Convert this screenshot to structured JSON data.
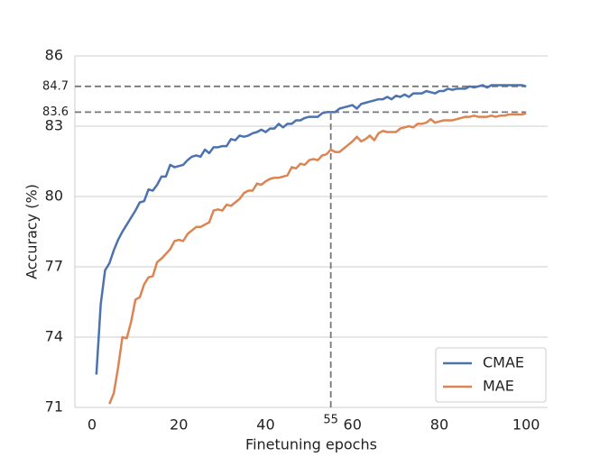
{
  "chart_data": {
    "type": "line",
    "xlabel": "Finetuning epochs",
    "ylabel": "Accuracy (%)",
    "xlim": [
      -3.95,
      104.95
    ],
    "ylim": [
      71,
      86
    ],
    "xticks": [
      0,
      20,
      40,
      60,
      80,
      100
    ],
    "yticks": [
      71,
      74,
      77,
      80,
      83,
      86
    ],
    "grid": true,
    "legend": "lower right",
    "reference_yticks": [
      84.7,
      83.6
    ],
    "reference_xtick": 55,
    "series": [
      {
        "name": "CMAE",
        "color": "#4c72b0",
        "x": [
          1,
          2,
          3,
          4,
          5,
          6,
          7,
          8,
          9,
          10,
          11,
          12,
          13,
          14,
          15,
          16,
          17,
          18,
          19,
          20,
          21,
          22,
          23,
          24,
          25,
          26,
          27,
          28,
          29,
          30,
          31,
          32,
          33,
          34,
          35,
          36,
          37,
          38,
          39,
          40,
          41,
          42,
          43,
          44,
          45,
          46,
          47,
          48,
          49,
          50,
          51,
          52,
          53,
          54,
          55,
          56,
          57,
          58,
          59,
          60,
          61,
          62,
          63,
          64,
          65,
          66,
          67,
          68,
          69,
          70,
          71,
          72,
          73,
          74,
          75,
          76,
          77,
          78,
          79,
          80,
          81,
          82,
          83,
          84,
          85,
          86,
          87,
          88,
          89,
          90,
          91,
          92,
          93,
          94,
          95,
          96,
          97,
          98,
          99,
          100
        ],
        "values": [
          72.4,
          75.4,
          76.85,
          77.15,
          77.7,
          78.15,
          78.5,
          78.8,
          79.1,
          79.4,
          79.75,
          79.8,
          80.3,
          80.25,
          80.5,
          80.85,
          80.85,
          81.35,
          81.25,
          81.3,
          81.35,
          81.55,
          81.7,
          81.75,
          81.7,
          82.0,
          81.85,
          82.1,
          82.1,
          82.15,
          82.15,
          82.45,
          82.4,
          82.6,
          82.55,
          82.6,
          82.7,
          82.75,
          82.85,
          82.75,
          82.9,
          82.9,
          83.1,
          82.95,
          83.1,
          83.1,
          83.25,
          83.25,
          83.35,
          83.4,
          83.4,
          83.4,
          83.55,
          83.6,
          83.6,
          83.6,
          83.75,
          83.8,
          83.85,
          83.9,
          83.75,
          83.95,
          84.0,
          84.05,
          84.1,
          84.15,
          84.15,
          84.25,
          84.15,
          84.3,
          84.25,
          84.35,
          84.25,
          84.4,
          84.4,
          84.4,
          84.5,
          84.45,
          84.4,
          84.5,
          84.5,
          84.6,
          84.55,
          84.6,
          84.6,
          84.6,
          84.7,
          84.65,
          84.7,
          84.75,
          84.65,
          84.75,
          84.75,
          84.75,
          84.75,
          84.75,
          84.75,
          84.75,
          84.75,
          84.7
        ]
      },
      {
        "name": "MAE",
        "color": "#dd8452",
        "x": [
          4,
          5,
          6,
          7,
          8,
          9,
          10,
          11,
          12,
          13,
          14,
          15,
          16,
          17,
          18,
          19,
          20,
          21,
          22,
          23,
          24,
          25,
          26,
          27,
          28,
          29,
          30,
          31,
          32,
          33,
          34,
          35,
          36,
          37,
          38,
          39,
          40,
          41,
          42,
          43,
          44,
          45,
          46,
          47,
          48,
          49,
          50,
          51,
          52,
          53,
          54,
          55,
          56,
          57,
          58,
          59,
          60,
          61,
          62,
          63,
          64,
          65,
          66,
          67,
          68,
          69,
          70,
          71,
          72,
          73,
          74,
          75,
          76,
          77,
          78,
          79,
          80,
          81,
          82,
          83,
          84,
          85,
          86,
          87,
          88,
          89,
          90,
          91,
          92,
          93,
          94,
          95,
          96,
          97,
          98,
          99,
          100
        ],
        "values": [
          71.15,
          71.6,
          72.7,
          74.0,
          73.95,
          74.65,
          75.6,
          75.7,
          76.25,
          76.55,
          76.6,
          77.2,
          77.35,
          77.55,
          77.75,
          78.1,
          78.15,
          78.1,
          78.4,
          78.55,
          78.7,
          78.7,
          78.8,
          78.9,
          79.4,
          79.45,
          79.4,
          79.65,
          79.6,
          79.75,
          79.9,
          80.15,
          80.25,
          80.25,
          80.55,
          80.5,
          80.65,
          80.75,
          80.8,
          80.8,
          80.85,
          80.9,
          81.25,
          81.2,
          81.4,
          81.35,
          81.55,
          81.6,
          81.55,
          81.75,
          81.8,
          82.0,
          81.9,
          81.9,
          82.05,
          82.2,
          82.35,
          82.55,
          82.35,
          82.45,
          82.6,
          82.4,
          82.7,
          82.8,
          82.75,
          82.75,
          82.75,
          82.9,
          82.95,
          83.0,
          82.95,
          83.1,
          83.1,
          83.15,
          83.3,
          83.15,
          83.2,
          83.25,
          83.25,
          83.25,
          83.3,
          83.35,
          83.4,
          83.4,
          83.45,
          83.4,
          83.4,
          83.4,
          83.45,
          83.4,
          83.45,
          83.45,
          83.5,
          83.5,
          83.5,
          83.5,
          83.55
        ]
      }
    ]
  }
}
